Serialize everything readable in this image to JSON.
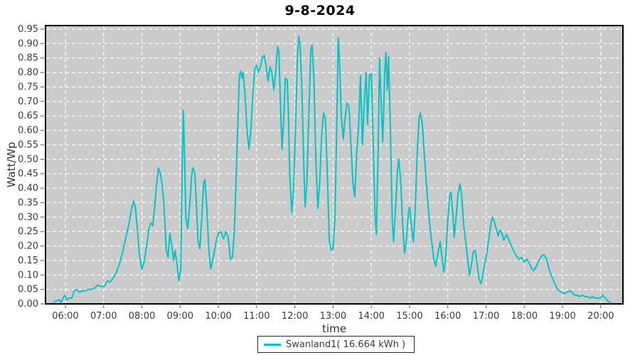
{
  "title": "9-8-2024",
  "legend": {
    "label": "Swanland1( 16.664 kWh )"
  },
  "colors": {
    "line": "#00c6c8",
    "plot_bg": "#cbcbcb",
    "grid": "#ffffff",
    "frame": "#000000",
    "tick_text": "#3b3b3b",
    "axis_text": "#333333",
    "page_bg": "#ffffff"
  },
  "chart_data": {
    "type": "line",
    "title": "9-8-2024",
    "xlabel": "time",
    "ylabel": "Watt/Wp",
    "grid": true,
    "legend_position": "bottom-center",
    "ylim": [
      0,
      0.95
    ],
    "xlim_hours": [
      5.48,
      20.58
    ],
    "x_ticks": [
      "06:00",
      "07:00",
      "08:00",
      "09:00",
      "10:00",
      "11:00",
      "12:00",
      "13:00",
      "14:00",
      "15:00",
      "16:00",
      "17:00",
      "18:00",
      "19:00",
      "20:00"
    ],
    "y_ticks": [
      "0.00",
      "0.05",
      "0.10",
      "0.15",
      "0.20",
      "0.25",
      "0.30",
      "0.35",
      "0.40",
      "0.45",
      "0.50",
      "0.55",
      "0.60",
      "0.65",
      "0.70",
      "0.75",
      "0.80",
      "0.85",
      "0.90",
      "0.95"
    ],
    "series": [
      {
        "name": "Swanland1( 16.664 kWh )",
        "energy_kwh": 16.664,
        "points": [
          [
            "05:42",
            0.005
          ],
          [
            "05:46",
            0.01
          ],
          [
            "05:50",
            0.015
          ],
          [
            "05:53",
            0.005
          ],
          [
            "05:56",
            0.02
          ],
          [
            "05:59",
            0.03
          ],
          [
            "06:02",
            0.015
          ],
          [
            "06:06",
            0.02
          ],
          [
            "06:10",
            0.02
          ],
          [
            "06:14",
            0.045
          ],
          [
            "06:18",
            0.05
          ],
          [
            "06:22",
            0.04
          ],
          [
            "06:26",
            0.045
          ],
          [
            "06:31",
            0.045
          ],
          [
            "06:36",
            0.05
          ],
          [
            "06:41",
            0.05
          ],
          [
            "06:46",
            0.055
          ],
          [
            "06:51",
            0.065
          ],
          [
            "06:56",
            0.06
          ],
          [
            "07:01",
            0.06
          ],
          [
            "07:06",
            0.08
          ],
          [
            "07:10",
            0.075
          ],
          [
            "07:15",
            0.09
          ],
          [
            "07:20",
            0.11
          ],
          [
            "07:25",
            0.14
          ],
          [
            "07:30",
            0.18
          ],
          [
            "07:35",
            0.23
          ],
          [
            "07:40",
            0.28
          ],
          [
            "07:44",
            0.33
          ],
          [
            "07:47",
            0.355
          ],
          [
            "07:50",
            0.33
          ],
          [
            "07:53",
            0.26
          ],
          [
            "07:56",
            0.17
          ],
          [
            "08:00",
            0.12
          ],
          [
            "08:04",
            0.15
          ],
          [
            "08:08",
            0.21
          ],
          [
            "08:11",
            0.26
          ],
          [
            "08:14",
            0.28
          ],
          [
            "08:17",
            0.27
          ],
          [
            "08:20",
            0.33
          ],
          [
            "08:23",
            0.41
          ],
          [
            "08:26",
            0.47
          ],
          [
            "08:29",
            0.45
          ],
          [
            "08:32",
            0.41
          ],
          [
            "08:35",
            0.33
          ],
          [
            "08:38",
            0.19
          ],
          [
            "08:41",
            0.16
          ],
          [
            "08:44",
            0.245
          ],
          [
            "08:47",
            0.2
          ],
          [
            "08:50",
            0.15
          ],
          [
            "08:52",
            0.185
          ],
          [
            "08:55",
            0.14
          ],
          [
            "08:58",
            0.08
          ],
          [
            "09:01",
            0.12
          ],
          [
            "09:03",
            0.45
          ],
          [
            "09:05",
            0.67
          ],
          [
            "09:07",
            0.5
          ],
          [
            "09:09",
            0.3
          ],
          [
            "09:12",
            0.26
          ],
          [
            "09:15",
            0.34
          ],
          [
            "09:18",
            0.44
          ],
          [
            "09:20",
            0.47
          ],
          [
            "09:23",
            0.455
          ],
          [
            "09:26",
            0.32
          ],
          [
            "09:28",
            0.22
          ],
          [
            "09:31",
            0.19
          ],
          [
            "09:34",
            0.3
          ],
          [
            "09:37",
            0.42
          ],
          [
            "09:39",
            0.43
          ],
          [
            "09:42",
            0.33
          ],
          [
            "09:45",
            0.19
          ],
          [
            "09:48",
            0.12
          ],
          [
            "09:52",
            0.16
          ],
          [
            "09:56",
            0.21
          ],
          [
            "10:00",
            0.245
          ],
          [
            "10:04",
            0.25
          ],
          [
            "10:08",
            0.225
          ],
          [
            "10:12",
            0.25
          ],
          [
            "10:15",
            0.235
          ],
          [
            "10:19",
            0.155
          ],
          [
            "10:22",
            0.16
          ],
          [
            "10:25",
            0.25
          ],
          [
            "10:28",
            0.45
          ],
          [
            "10:31",
            0.65
          ],
          [
            "10:33",
            0.79
          ],
          [
            "10:35",
            0.805
          ],
          [
            "10:37",
            0.78
          ],
          [
            "10:39",
            0.8
          ],
          [
            "10:42",
            0.72
          ],
          [
            "10:45",
            0.6
          ],
          [
            "10:48",
            0.535
          ],
          [
            "10:51",
            0.6
          ],
          [
            "10:54",
            0.72
          ],
          [
            "10:57",
            0.81
          ],
          [
            "11:00",
            0.825
          ],
          [
            "11:03",
            0.8
          ],
          [
            "11:06",
            0.82
          ],
          [
            "11:09",
            0.85
          ],
          [
            "11:12",
            0.86
          ],
          [
            "11:15",
            0.82
          ],
          [
            "11:18",
            0.77
          ],
          [
            "11:21",
            0.82
          ],
          [
            "11:24",
            0.8
          ],
          [
            "11:27",
            0.74
          ],
          [
            "11:30",
            0.8
          ],
          [
            "11:33",
            0.89
          ],
          [
            "11:35",
            0.87
          ],
          [
            "11:38",
            0.65
          ],
          [
            "11:40",
            0.535
          ],
          [
            "11:43",
            0.66
          ],
          [
            "11:45",
            0.78
          ],
          [
            "11:48",
            0.775
          ],
          [
            "11:50",
            0.66
          ],
          [
            "11:52",
            0.45
          ],
          [
            "11:55",
            0.315
          ],
          [
            "11:58",
            0.4
          ],
          [
            "12:01",
            0.6
          ],
          [
            "12:04",
            0.85
          ],
          [
            "12:06",
            0.925
          ],
          [
            "12:08",
            0.9
          ],
          [
            "12:11",
            0.75
          ],
          [
            "12:14",
            0.48
          ],
          [
            "12:16",
            0.335
          ],
          [
            "12:19",
            0.42
          ],
          [
            "12:22",
            0.65
          ],
          [
            "12:25",
            0.875
          ],
          [
            "12:27",
            0.895
          ],
          [
            "12:30",
            0.78
          ],
          [
            "12:33",
            0.5
          ],
          [
            "12:36",
            0.33
          ],
          [
            "12:39",
            0.42
          ],
          [
            "12:42",
            0.58
          ],
          [
            "12:45",
            0.66
          ],
          [
            "12:48",
            0.64
          ],
          [
            "12:51",
            0.45
          ],
          [
            "12:54",
            0.22
          ],
          [
            "12:57",
            0.185
          ],
          [
            "13:00",
            0.19
          ],
          [
            "13:03",
            0.3
          ],
          [
            "13:06",
            0.65
          ],
          [
            "13:08",
            0.92
          ],
          [
            "13:10",
            0.85
          ],
          [
            "13:13",
            0.65
          ],
          [
            "13:16",
            0.57
          ],
          [
            "13:19",
            0.645
          ],
          [
            "13:22",
            0.695
          ],
          [
            "13:25",
            0.68
          ],
          [
            "13:28",
            0.55
          ],
          [
            "13:31",
            0.42
          ],
          [
            "13:34",
            0.37
          ],
          [
            "13:37",
            0.52
          ],
          [
            "13:40",
            0.61
          ],
          [
            "13:43",
            0.79
          ],
          [
            "13:46",
            0.55
          ],
          [
            "13:49",
            0.7
          ],
          [
            "13:52",
            0.8
          ],
          [
            "13:54",
            0.62
          ],
          [
            "13:57",
            0.79
          ],
          [
            "14:00",
            0.795
          ],
          [
            "14:03",
            0.55
          ],
          [
            "14:06",
            0.3
          ],
          [
            "14:08",
            0.24
          ],
          [
            "14:11",
            0.55
          ],
          [
            "14:13",
            0.85
          ],
          [
            "14:15",
            0.72
          ],
          [
            "14:18",
            0.56
          ],
          [
            "14:21",
            0.8
          ],
          [
            "14:23",
            0.87
          ],
          [
            "14:25",
            0.74
          ],
          [
            "14:27",
            0.855
          ],
          [
            "14:30",
            0.6
          ],
          [
            "14:33",
            0.28
          ],
          [
            "14:35",
            0.215
          ],
          [
            "14:38",
            0.33
          ],
          [
            "14:41",
            0.46
          ],
          [
            "14:43",
            0.5
          ],
          [
            "14:46",
            0.43
          ],
          [
            "14:49",
            0.28
          ],
          [
            "14:52",
            0.175
          ],
          [
            "14:55",
            0.22
          ],
          [
            "14:58",
            0.31
          ],
          [
            "15:00",
            0.335
          ],
          [
            "15:03",
            0.27
          ],
          [
            "15:06",
            0.215
          ],
          [
            "15:09",
            0.33
          ],
          [
            "15:12",
            0.52
          ],
          [
            "15:15",
            0.645
          ],
          [
            "15:17",
            0.66
          ],
          [
            "15:20",
            0.62
          ],
          [
            "15:23",
            0.52
          ],
          [
            "15:26",
            0.43
          ],
          [
            "15:29",
            0.34
          ],
          [
            "15:32",
            0.27
          ],
          [
            "15:35",
            0.21
          ],
          [
            "15:38",
            0.155
          ],
          [
            "15:41",
            0.13
          ],
          [
            "15:45",
            0.18
          ],
          [
            "15:48",
            0.215
          ],
          [
            "15:51",
            0.16
          ],
          [
            "15:54",
            0.11
          ],
          [
            "15:57",
            0.17
          ],
          [
            "16:00",
            0.29
          ],
          [
            "16:03",
            0.375
          ],
          [
            "16:05",
            0.385
          ],
          [
            "16:08",
            0.31
          ],
          [
            "16:10",
            0.23
          ],
          [
            "16:13",
            0.3
          ],
          [
            "16:16",
            0.38
          ],
          [
            "16:19",
            0.415
          ],
          [
            "16:22",
            0.37
          ],
          [
            "16:25",
            0.27
          ],
          [
            "16:28",
            0.215
          ],
          [
            "16:31",
            0.16
          ],
          [
            "16:34",
            0.1
          ],
          [
            "16:37",
            0.135
          ],
          [
            "16:40",
            0.18
          ],
          [
            "16:43",
            0.185
          ],
          [
            "16:46",
            0.14
          ],
          [
            "16:49",
            0.085
          ],
          [
            "16:52",
            0.07
          ],
          [
            "16:55",
            0.1
          ],
          [
            "16:58",
            0.14
          ],
          [
            "17:01",
            0.17
          ],
          [
            "17:04",
            0.22
          ],
          [
            "17:07",
            0.27
          ],
          [
            "17:10",
            0.3
          ],
          [
            "17:13",
            0.285
          ],
          [
            "17:16",
            0.26
          ],
          [
            "17:19",
            0.235
          ],
          [
            "17:22",
            0.255
          ],
          [
            "17:25",
            0.245
          ],
          [
            "17:28",
            0.22
          ],
          [
            "17:32",
            0.24
          ],
          [
            "17:36",
            0.22
          ],
          [
            "17:40",
            0.2
          ],
          [
            "17:44",
            0.18
          ],
          [
            "17:48",
            0.165
          ],
          [
            "17:52",
            0.155
          ],
          [
            "17:56",
            0.16
          ],
          [
            "18:00",
            0.145
          ],
          [
            "18:04",
            0.155
          ],
          [
            "18:08",
            0.14
          ],
          [
            "18:12",
            0.12
          ],
          [
            "18:15",
            0.115
          ],
          [
            "18:19",
            0.13
          ],
          [
            "18:23",
            0.15
          ],
          [
            "18:27",
            0.165
          ],
          [
            "18:31",
            0.17
          ],
          [
            "18:35",
            0.155
          ],
          [
            "18:39",
            0.12
          ],
          [
            "18:43",
            0.095
          ],
          [
            "18:47",
            0.075
          ],
          [
            "18:51",
            0.055
          ],
          [
            "18:55",
            0.045
          ],
          [
            "18:59",
            0.04
          ],
          [
            "19:03",
            0.035
          ],
          [
            "19:07",
            0.04
          ],
          [
            "19:11",
            0.045
          ],
          [
            "19:15",
            0.04
          ],
          [
            "19:19",
            0.03
          ],
          [
            "19:23",
            0.03
          ],
          [
            "19:27",
            0.025
          ],
          [
            "19:31",
            0.03
          ],
          [
            "19:35",
            0.025
          ],
          [
            "19:39",
            0.025
          ],
          [
            "19:43",
            0.02
          ],
          [
            "19:47",
            0.025
          ],
          [
            "19:51",
            0.02
          ],
          [
            "19:55",
            0.02
          ],
          [
            "19:59",
            0.02
          ],
          [
            "20:03",
            0.03
          ],
          [
            "20:07",
            0.02
          ],
          [
            "20:11",
            0.01
          ],
          [
            "20:15",
            0.005
          ],
          [
            "20:17",
            0.0
          ]
        ]
      }
    ]
  }
}
